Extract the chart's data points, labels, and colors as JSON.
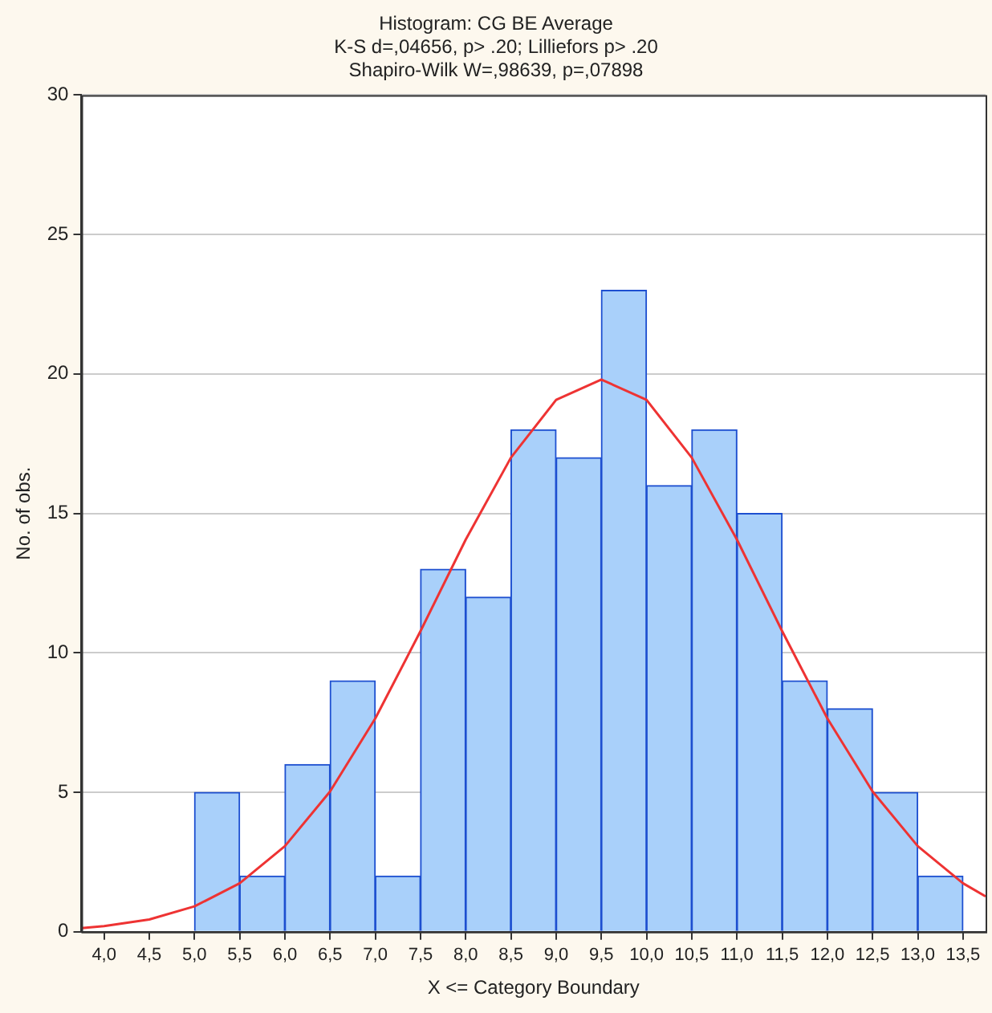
{
  "chart_data": {
    "type": "histogram",
    "title": "Histogram: CG BE Average",
    "subtitle": "K-S d=,04656, p> .20; Lilliefors p> .20",
    "annotations": [
      "Shapiro-Wilk W=,98639, p=,07898"
    ],
    "xlabel": "X <= Category Boundary",
    "ylabel": "No. of obs.",
    "bins": [
      5.0,
      5.5,
      6.0,
      6.5,
      7.0,
      7.5,
      8.0,
      8.5,
      9.0,
      9.5,
      10.0,
      10.5,
      11.0,
      11.5,
      12.0,
      12.5,
      13.0,
      13.5
    ],
    "values": [
      5,
      2,
      6,
      9,
      2,
      13,
      12,
      18,
      17,
      23,
      16,
      18,
      15,
      9,
      8,
      5,
      2
    ],
    "color": "#a9d0fa",
    "series": [
      {
        "type": "line",
        "color": "#ee3333",
        "x": [
          3.75,
          4.0,
          4.5,
          5.0,
          5.5,
          6.0,
          6.5,
          7.0,
          7.5,
          8.0,
          8.5,
          9.0,
          9.5,
          10.0,
          10.5,
          11.0,
          11.5,
          12.0,
          12.5,
          13.0,
          13.5,
          13.75
        ],
        "values": [
          0.13,
          0.2,
          0.44,
          0.91,
          1.74,
          3.07,
          5.03,
          7.65,
          10.78,
          14.06,
          17.0,
          19.07,
          19.8,
          19.07,
          17.0,
          14.06,
          10.78,
          7.65,
          5.03,
          3.07,
          1.74,
          1.27
        ]
      }
    ],
    "xlim": [
      3.75,
      13.75
    ],
    "xticks": [
      {
        "value": 4.0,
        "label": "4,0"
      },
      {
        "value": 4.5,
        "label": "4,5"
      },
      {
        "value": 5.0,
        "label": "5,0"
      },
      {
        "value": 5.5,
        "label": "5,5"
      },
      {
        "value": 6.0,
        "label": "6,0"
      },
      {
        "value": 6.5,
        "label": "6,5"
      },
      {
        "value": 7.0,
        "label": "7,0"
      },
      {
        "value": 7.5,
        "label": "7,5"
      },
      {
        "value": 8.0,
        "label": "8,0"
      },
      {
        "value": 8.5,
        "label": "8,5"
      },
      {
        "value": 9.0,
        "label": "9,0"
      },
      {
        "value": 9.5,
        "label": "9,5"
      },
      {
        "value": 10.0,
        "label": "10,0"
      },
      {
        "value": 10.5,
        "label": "10,5"
      },
      {
        "value": 11.0,
        "label": "11,0"
      },
      {
        "value": 11.5,
        "label": "11,5"
      },
      {
        "value": 12.0,
        "label": "12,0"
      },
      {
        "value": 12.5,
        "label": "12,5"
      },
      {
        "value": 13.0,
        "label": "13,0"
      },
      {
        "value": 13.5,
        "label": "13,5"
      }
    ],
    "ylim": [
      0,
      30
    ],
    "yticks": [
      0,
      5,
      10,
      15,
      20,
      25,
      30
    ],
    "grid": "y",
    "legend": false,
    "marker": "none"
  }
}
